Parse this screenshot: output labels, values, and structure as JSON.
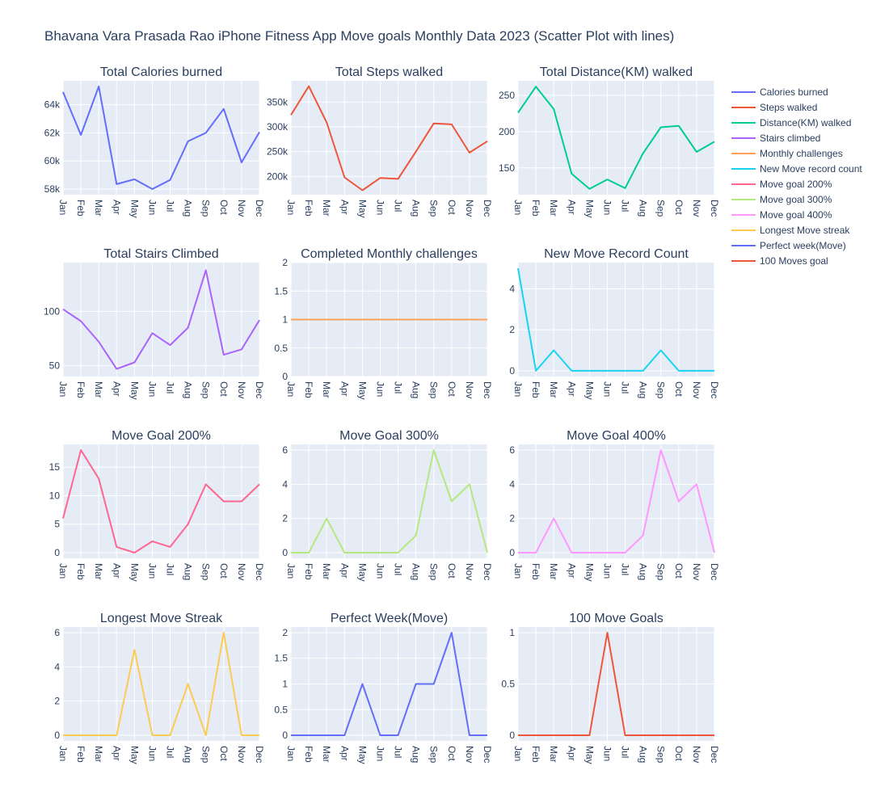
{
  "title": "Bhavana Vara Prasada Rao iPhone Fitness App Move goals Monthly Data 2023 (Scatter Plot with lines)",
  "legend": [
    {
      "label": "Calories burned",
      "color": "#636efa"
    },
    {
      "label": "Steps walked",
      "color": "#EF553B"
    },
    {
      "label": "Distance(KM) walked",
      "color": "#00cc96"
    },
    {
      "label": "Stairs climbed",
      "color": "#ab63fa"
    },
    {
      "label": "Monthly challenges",
      "color": "#FFA15A"
    },
    {
      "label": "New Move record count",
      "color": "#19d3f3"
    },
    {
      "label": "Move goal 200%",
      "color": "#FF6692"
    },
    {
      "label": "Move goal 300%",
      "color": "#B6E880"
    },
    {
      "label": "Move goal 400%",
      "color": "#FF97FF"
    },
    {
      "label": "Longest Move streak",
      "color": "#FECB52"
    },
    {
      "label": "Perfect week(Move)",
      "color": "#636efa"
    },
    {
      "label": "100 Moves goal",
      "color": "#EF553B"
    }
  ],
  "chart_data": [
    {
      "type": "line",
      "title": "Total Calories burned",
      "series_name": "Calories burned",
      "color": "#636efa",
      "x": [
        "Jan",
        "Feb",
        "Mar",
        "Apr",
        "May",
        "Jun",
        "Jul",
        "Aug",
        "Sep",
        "Oct",
        "Nov",
        "Dec"
      ],
      "values": [
        64900,
        61850,
        65300,
        58350,
        58700,
        58000,
        58650,
        61400,
        62000,
        63700,
        59900,
        62050
      ],
      "ylim": [
        57600,
        65700
      ],
      "yticks": [
        58000,
        60000,
        62000,
        64000
      ],
      "ytick_labels": [
        "58k",
        "60k",
        "62k",
        "64k"
      ]
    },
    {
      "type": "line",
      "title": "Total Steps walked",
      "series_name": "Steps walked",
      "color": "#EF553B",
      "x": [
        "Jan",
        "Feb",
        "Mar",
        "Apr",
        "May",
        "Jun",
        "Jul",
        "Aug",
        "Sep",
        "Oct",
        "Nov",
        "Dec"
      ],
      "values": [
        324000,
        382000,
        309000,
        198000,
        172000,
        197000,
        195000,
        250000,
        307000,
        305000,
        248000,
        271000
      ],
      "ylim": [
        163000,
        393000
      ],
      "yticks": [
        200000,
        250000,
        300000,
        350000
      ],
      "ytick_labels": [
        "200k",
        "250k",
        "300k",
        "350k"
      ]
    },
    {
      "type": "line",
      "title": "Total Distance(KM) walked",
      "series_name": "Distance(KM) walked",
      "color": "#00cc96",
      "x": [
        "Jan",
        "Feb",
        "Mar",
        "Apr",
        "May",
        "Jun",
        "Jul",
        "Aug",
        "Sep",
        "Oct",
        "Nov",
        "Dec"
      ],
      "values": [
        226,
        262,
        231,
        142,
        121,
        134,
        122,
        170,
        206,
        208,
        172,
        186
      ],
      "ylim": [
        113,
        270
      ],
      "yticks": [
        150,
        200,
        250
      ],
      "ytick_labels": [
        "150",
        "200",
        "250"
      ]
    },
    {
      "type": "line",
      "title": "Total Stairs Climbed",
      "series_name": "Stairs climbed",
      "color": "#ab63fa",
      "x": [
        "Jan",
        "Feb",
        "Mar",
        "Apr",
        "May",
        "Jun",
        "Jul",
        "Aug",
        "Sep",
        "Oct",
        "Nov",
        "Dec"
      ],
      "values": [
        102,
        91,
        72,
        47,
        53,
        80,
        69,
        85,
        138,
        60,
        65,
        92
      ],
      "ylim": [
        40,
        145
      ],
      "yticks": [
        50,
        100
      ],
      "ytick_labels": [
        "50",
        "100"
      ]
    },
    {
      "type": "line",
      "title": "Completed Monthly challenges",
      "series_name": "Monthly challenges",
      "color": "#FFA15A",
      "x": [
        "Jan",
        "Feb",
        "Mar",
        "Apr",
        "May",
        "Jun",
        "Jul",
        "Aug",
        "Sep",
        "Oct",
        "Nov",
        "Dec"
      ],
      "values": [
        1,
        1,
        1,
        1,
        1,
        1,
        1,
        1,
        1,
        1,
        1,
        1
      ],
      "ylim": [
        0,
        2
      ],
      "yticks": [
        0,
        0.5,
        1,
        1.5,
        2
      ],
      "ytick_labels": [
        "0",
        "0.5",
        "1",
        "1.5",
        "2"
      ]
    },
    {
      "type": "line",
      "title": "New Move Record Count",
      "series_name": "New Move record count",
      "color": "#19d3f3",
      "x": [
        "Jan",
        "Feb",
        "Mar",
        "Apr",
        "May",
        "Jun",
        "Jul",
        "Aug",
        "Sep",
        "Oct",
        "Nov",
        "Dec"
      ],
      "values": [
        5,
        0,
        1,
        0,
        0,
        0,
        0,
        0,
        1,
        0,
        0,
        0
      ],
      "ylim": [
        -0.28,
        5.28
      ],
      "yticks": [
        0,
        2,
        4
      ],
      "ytick_labels": [
        "0",
        "2",
        "4"
      ]
    },
    {
      "type": "line",
      "title": "Move Goal 200%",
      "series_name": "Move goal 200%",
      "color": "#FF6692",
      "x": [
        "Jan",
        "Feb",
        "Mar",
        "Apr",
        "May",
        "Jun",
        "Jul",
        "Aug",
        "Sep",
        "Oct",
        "Nov",
        "Dec"
      ],
      "values": [
        6,
        18,
        13,
        1,
        0,
        2,
        1,
        5,
        12,
        9,
        9,
        12
      ],
      "ylim": [
        -1,
        19
      ],
      "yticks": [
        0,
        5,
        10,
        15
      ],
      "ytick_labels": [
        "0",
        "5",
        "10",
        "15"
      ]
    },
    {
      "type": "line",
      "title": "Move Goal 300%",
      "series_name": "Move goal 300%",
      "color": "#B6E880",
      "x": [
        "Jan",
        "Feb",
        "Mar",
        "Apr",
        "May",
        "Jun",
        "Jul",
        "Aug",
        "Sep",
        "Oct",
        "Nov",
        "Dec"
      ],
      "values": [
        0,
        0,
        2,
        0,
        0,
        0,
        0,
        1,
        6,
        3,
        4,
        0
      ],
      "ylim": [
        -0.33,
        6.33
      ],
      "yticks": [
        0,
        2,
        4,
        6
      ],
      "ytick_labels": [
        "0",
        "2",
        "4",
        "6"
      ]
    },
    {
      "type": "line",
      "title": "Move Goal 400%",
      "series_name": "Move goal 400%",
      "color": "#FF97FF",
      "x": [
        "Jan",
        "Feb",
        "Mar",
        "Apr",
        "May",
        "Jun",
        "Jul",
        "Aug",
        "Sep",
        "Oct",
        "Nov",
        "Dec"
      ],
      "values": [
        0,
        0,
        2,
        0,
        0,
        0,
        0,
        1,
        6,
        3,
        4,
        0
      ],
      "ylim": [
        -0.33,
        6.33
      ],
      "yticks": [
        0,
        2,
        4,
        6
      ],
      "ytick_labels": [
        "0",
        "2",
        "4",
        "6"
      ]
    },
    {
      "type": "line",
      "title": "Longest Move Streak",
      "series_name": "Longest Move streak",
      "color": "#FECB52",
      "x": [
        "Jan",
        "Feb",
        "Mar",
        "Apr",
        "May",
        "Jun",
        "Jul",
        "Aug",
        "Sep",
        "Oct",
        "Nov",
        "Dec"
      ],
      "values": [
        0,
        0,
        0,
        0,
        5,
        0,
        0,
        3,
        0,
        6,
        0,
        0
      ],
      "ylim": [
        -0.33,
        6.33
      ],
      "yticks": [
        0,
        2,
        4,
        6
      ],
      "ytick_labels": [
        "0",
        "2",
        "4",
        "6"
      ]
    },
    {
      "type": "line",
      "title": "Perfect Week(Move)",
      "series_name": "Perfect week(Move)",
      "color": "#636efa",
      "x": [
        "Jan",
        "Feb",
        "Mar",
        "Apr",
        "May",
        "Jun",
        "Jul",
        "Aug",
        "Sep",
        "Oct",
        "Nov",
        "Dec"
      ],
      "values": [
        0,
        0,
        0,
        0,
        1,
        0,
        0,
        1,
        1,
        2,
        0,
        0
      ],
      "ylim": [
        -0.11,
        2.11
      ],
      "yticks": [
        0,
        0.5,
        1,
        1.5,
        2
      ],
      "ytick_labels": [
        "0",
        "0.5",
        "1",
        "1.5",
        "2"
      ]
    },
    {
      "type": "line",
      "title": "100 Move Goals",
      "series_name": "100 Moves goal",
      "color": "#EF553B",
      "x": [
        "Jan",
        "Feb",
        "Mar",
        "Apr",
        "May",
        "Jun",
        "Jul",
        "Aug",
        "Sep",
        "Oct",
        "Nov",
        "Dec"
      ],
      "values": [
        0,
        0,
        0,
        0,
        0,
        1,
        0,
        0,
        0,
        0,
        0,
        0
      ],
      "ylim": [
        -0.055,
        1.055
      ],
      "yticks": [
        0,
        0.5,
        1
      ],
      "ytick_labels": [
        "0",
        "0.5",
        "1"
      ]
    }
  ]
}
